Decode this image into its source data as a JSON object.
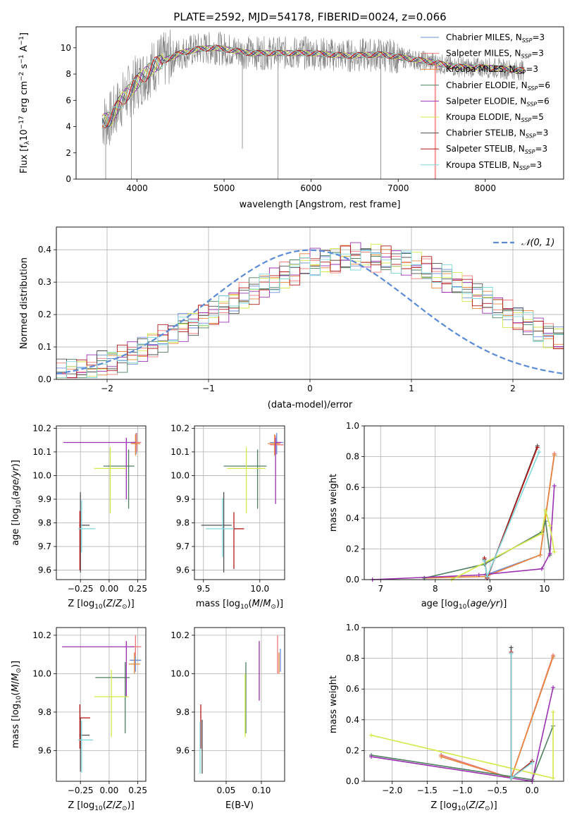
{
  "figure_title": "PLATE=2592, MJD=54178, FIBERID=0024, z=0.066",
  "colors": {
    "Chabrier MILES": "#6b8ed6",
    "Salpeter MILES": "#f07878",
    "Kroupa MILES": "#e8863a",
    "Chabrier ELODIE": "#4f7f5f",
    "Salpeter ELODIE": "#9b30b0",
    "Kroupa ELODIE": "#d4e84a",
    "Chabrier STELIB": "#505050",
    "Salpeter STELIB": "#b01818",
    "Kroupa STELIB": "#80d8dd",
    "data": "#808080",
    "normal": "#5b8bd6"
  },
  "chart_data": [
    {
      "type": "line",
      "id": "spectrum",
      "xlabel": "wavelength [Angstrom, rest frame]",
      "ylabel": "Flux [f_λ10^{-17} erg cm^{-2} s^{-1} A^{-1}]",
      "ylabel_parts": {
        "main": "Flux [f",
        "sub": "λ",
        "mid": "10",
        "sup1": "−17",
        "mid2": " erg cm",
        "sup2": "−2",
        "mid3": " s",
        "sup3": "−1",
        "end": " A",
        "sup4": "−1",
        "close": "]"
      },
      "xlim": [
        3300,
        8900
      ],
      "ylim": [
        0,
        11.6
      ],
      "xticks": [
        4000,
        5000,
        6000,
        7000,
        8000
      ],
      "yticks": [
        0,
        2,
        4,
        6,
        8,
        10
      ],
      "legend_location": "top-right",
      "series": [
        {
          "name": "Chabrier MILES",
          "nssp": "3"
        },
        {
          "name": "Salpeter MILES",
          "nssp": "3"
        },
        {
          "name": "Kroupa MILES",
          "nssp": "3"
        },
        {
          "name": "Chabrier ELODIE",
          "nssp": "6"
        },
        {
          "name": "Salpeter ELODIE",
          "nssp": "6"
        },
        {
          "name": "Kroupa ELODIE",
          "nssp": "5"
        },
        {
          "name": "Chabrier STELIB",
          "nssp": "3"
        },
        {
          "name": "Salpeter STELIB",
          "nssp": "3"
        },
        {
          "name": "Kroupa STELIB",
          "nssp": "3"
        }
      ],
      "continuum": {
        "x": [
          3600,
          3700,
          3800,
          3900,
          4000,
          4100,
          4200,
          4300,
          4400,
          4500,
          4700,
          4900,
          5100,
          5300,
          5600,
          6000,
          6400,
          6800,
          7000,
          7200,
          7400,
          7600,
          7800,
          8000,
          8200,
          8400,
          8800
        ],
        "y": [
          4.4,
          4.6,
          5.8,
          6.6,
          7.4,
          8.0,
          8.7,
          9.0,
          9.3,
          9.6,
          9.9,
          10.0,
          9.8,
          9.6,
          9.6,
          9.6,
          9.4,
          9.5,
          9.3,
          9.1,
          8.9,
          8.6,
          8.5,
          8.5,
          8.4,
          8.3,
          8.2
        ]
      }
    },
    {
      "type": "bar",
      "id": "residuals",
      "xlabel": "(data-model)/error",
      "ylabel": "Normed distribution",
      "xlim": [
        -2.5,
        2.5
      ],
      "ylim": [
        0,
        0.47
      ],
      "xticks": [
        -2,
        -1,
        0,
        1,
        2
      ],
      "yticks": [
        0.0,
        0.1,
        0.2,
        0.3,
        0.4
      ],
      "legend_location": "top-right",
      "normal_label": "𝒩(0, 1)",
      "bin_width": 0.1,
      "x_start": -2.5,
      "base": [
        0.02,
        0.025,
        0.03,
        0.035,
        0.045,
        0.055,
        0.065,
        0.08,
        0.09,
        0.11,
        0.125,
        0.14,
        0.16,
        0.175,
        0.19,
        0.205,
        0.22,
        0.24,
        0.255,
        0.275,
        0.29,
        0.305,
        0.32,
        0.335,
        0.35,
        0.36,
        0.365,
        0.37,
        0.375,
        0.38,
        0.375,
        0.375,
        0.37,
        0.365,
        0.36,
        0.35,
        0.34,
        0.325,
        0.31,
        0.295,
        0.28,
        0.26,
        0.24,
        0.225,
        0.205,
        0.19,
        0.17,
        0.155,
        0.14,
        0.125,
        0.11,
        0.1,
        0.09,
        0.08,
        0.07,
        0.06,
        0.05,
        0.045,
        0.04,
        0.035
      ]
    },
    {
      "type": "scatter",
      "id": "age-vs-Z",
      "xlabel": "Z [log10(Z/Z⊙)]",
      "ylabel": "age [log10(age/yr)]",
      "xlim": [
        -0.46,
        0.32
      ],
      "ylim": [
        9.56,
        10.21
      ],
      "xticks": [
        -0.25,
        0.0,
        0.25
      ],
      "xticklabels": [
        "−0.25",
        "0.00",
        "0.25"
      ],
      "yticks": [
        9.6,
        9.7,
        9.8,
        9.9,
        10.0,
        10.1,
        10.2
      ],
      "points": [
        {
          "series": "Chabrier MILES",
          "x": 0.235,
          "y": 10.14,
          "xerr": [
            0.05,
            0.03
          ],
          "yerr": [
            0.05,
            0.04
          ]
        },
        {
          "series": "Salpeter MILES",
          "x": 0.24,
          "y": 10.14,
          "xerr": [
            0.03,
            0.04
          ],
          "yerr": [
            0.04,
            0.04
          ]
        },
        {
          "series": "Kroupa MILES",
          "x": 0.23,
          "y": 10.135,
          "xerr": [
            0.04,
            0.04
          ],
          "yerr": [
            0.05,
            0.04
          ]
        },
        {
          "series": "Chabrier ELODIE",
          "x": 0.17,
          "y": 10.04,
          "xerr": [
            0.22,
            0.05
          ],
          "yerr": [
            0.18,
            0.07
          ]
        },
        {
          "series": "Salpeter ELODIE",
          "x": 0.15,
          "y": 10.14,
          "xerr": [
            0.55,
            0.08
          ],
          "yerr": [
            0.24,
            0.02
          ]
        },
        {
          "series": "Kroupa ELODIE",
          "x": 0.01,
          "y": 10.03,
          "xerr": [
            0.14,
            0.14
          ],
          "yerr": [
            0.19,
            0.09
          ]
        },
        {
          "series": "Chabrier STELIB",
          "x": -0.25,
          "y": 9.79,
          "xerr": [
            0.01,
            0.08
          ],
          "yerr": [
            0.2,
            0.14
          ]
        },
        {
          "series": "Salpeter STELIB",
          "x": -0.255,
          "y": 9.79,
          "xerr": [
            0.005,
            0.005
          ],
          "yerr": [
            0.19,
            0.06
          ]
        },
        {
          "series": "Kroupa STELIB",
          "x": -0.24,
          "y": 9.775,
          "xerr": [
            0.03,
            0.12
          ],
          "yerr": [
            0.1,
            0.12
          ]
        }
      ]
    },
    {
      "type": "scatter",
      "id": "age-vs-mass",
      "xlabel": "mass [log10(M/M⊙)]",
      "ylabel": "",
      "xlim": [
        9.42,
        10.22
      ],
      "ylim": [
        9.56,
        10.21
      ],
      "xticks": [
        9.5,
        10.0
      ],
      "xticklabels": [
        "9.5",
        "10.0"
      ],
      "yticks": [
        9.6,
        9.7,
        9.8,
        9.9,
        10.0,
        10.1,
        10.2
      ],
      "points": [
        {
          "series": "Chabrier MILES",
          "x": 10.15,
          "y": 10.14,
          "xerr": [
            0.06,
            0.06
          ],
          "yerr": [
            0.05,
            0.04
          ]
        },
        {
          "series": "Salpeter MILES",
          "x": 10.14,
          "y": 10.13,
          "xerr": [
            0.05,
            0.07
          ],
          "yerr": [
            0.04,
            0.04
          ]
        },
        {
          "series": "Kroupa MILES",
          "x": 10.13,
          "y": 10.135,
          "xerr": [
            0.06,
            0.05
          ],
          "yerr": [
            0.05,
            0.04
          ]
        },
        {
          "series": "Chabrier ELODIE",
          "x": 9.98,
          "y": 10.04,
          "xerr": [
            0.3,
            0.08
          ],
          "yerr": [
            0.18,
            0.07
          ]
        },
        {
          "series": "Salpeter ELODIE",
          "x": 10.14,
          "y": 10.14,
          "xerr": [
            0.0,
            0.05
          ],
          "yerr": [
            0.26,
            0.02
          ]
        },
        {
          "series": "Kroupa ELODIE",
          "x": 9.88,
          "y": 10.03,
          "xerr": [
            0.17,
            0.17
          ],
          "yerr": [
            0.19,
            0.09
          ]
        },
        {
          "series": "Chabrier STELIB",
          "x": 9.68,
          "y": 9.79,
          "xerr": [
            0.2,
            0.07
          ],
          "yerr": [
            0.2,
            0.14
          ]
        },
        {
          "series": "Salpeter STELIB",
          "x": 9.77,
          "y": 9.775,
          "xerr": [
            0.0,
            0.09
          ],
          "yerr": [
            0.17,
            0.07
          ]
        },
        {
          "series": "Kroupa STELIB",
          "x": 9.67,
          "y": 9.775,
          "xerr": [
            0.15,
            0.1
          ],
          "yerr": [
            0.12,
            0.13
          ]
        }
      ]
    },
    {
      "type": "line",
      "id": "massweight-vs-age",
      "xlabel": "age [log10(age/yr)]",
      "ylabel": "mass weight",
      "xlim": [
        6.7,
        10.35
      ],
      "ylim": [
        0,
        1.0
      ],
      "xticks": [
        7,
        8,
        9,
        10
      ],
      "yticks": [
        0.0,
        0.2,
        0.4,
        0.6,
        0.8,
        1.0
      ],
      "series": [
        {
          "name": "Chabrier MILES",
          "x": [
            8.92,
            9.92,
            10.18
          ],
          "y": [
            0.03,
            0.16,
            0.81
          ]
        },
        {
          "name": "Salpeter MILES",
          "x": [
            8.92,
            9.92,
            10.18
          ],
          "y": [
            0.02,
            0.16,
            0.82
          ]
        },
        {
          "name": "Kroupa MILES",
          "x": [
            7.8,
            8.92,
            9.92,
            10.18
          ],
          "y": [
            0.01,
            0.02,
            0.16,
            0.81
          ]
        },
        {
          "name": "Chabrier ELODIE",
          "x": [
            7.8,
            8.9,
            9.95,
            10.02,
            10.1
          ],
          "y": [
            0.01,
            0.1,
            0.31,
            0.38,
            0.16
          ]
        },
        {
          "name": "Salpeter ELODIE",
          "x": [
            6.85,
            8.8,
            9.95,
            10.1,
            10.18
          ],
          "y": [
            0.0,
            0.03,
            0.07,
            0.17,
            0.61
          ]
        },
        {
          "name": "Kroupa ELODIE",
          "x": [
            8.3,
            9.95,
            10.02,
            10.1,
            10.18
          ],
          "y": [
            0.0,
            0.3,
            0.45,
            0.35,
            0.18
          ]
        },
        {
          "name": "Chabrier STELIB",
          "x": [
            8.9,
            8.95,
            9.87
          ],
          "y": [
            0.13,
            0.01,
            0.87
          ]
        },
        {
          "name": "Salpeter STELIB",
          "x": [
            8.9,
            8.95,
            9.87
          ],
          "y": [
            0.14,
            0.01,
            0.86
          ]
        },
        {
          "name": "Kroupa STELIB",
          "x": [
            8.9,
            8.95,
            9.9
          ],
          "y": [
            0.12,
            0.02,
            0.83
          ]
        }
      ]
    },
    {
      "type": "scatter",
      "id": "mass-vs-Z",
      "xlabel": "Z [log10(Z/Z⊙)]",
      "ylabel": "mass [log10(M/M⊙)]",
      "xlim": [
        -0.46,
        0.32
      ],
      "ylim": [
        9.44,
        10.24
      ],
      "xticks": [
        -0.25,
        0.0,
        0.25
      ],
      "xticklabels": [
        "−0.25",
        "0.00",
        "0.25"
      ],
      "yticks": [
        9.6,
        9.8,
        10.0,
        10.2
      ],
      "points": [
        {
          "series": "Chabrier MILES",
          "x": 0.23,
          "y": 10.07,
          "xerr": [
            0.05,
            0.05
          ],
          "yerr": [
            0.06,
            0.06
          ]
        },
        {
          "series": "Salpeter MILES",
          "x": 0.23,
          "y": 10.14,
          "xerr": [
            0.04,
            0.05
          ],
          "yerr": [
            0.05,
            0.06
          ]
        },
        {
          "series": "Kroupa MILES",
          "x": 0.22,
          "y": 10.05,
          "xerr": [
            0.05,
            0.05
          ],
          "yerr": [
            0.05,
            0.06
          ]
        },
        {
          "series": "Chabrier ELODIE",
          "x": 0.14,
          "y": 9.98,
          "xerr": [
            0.26,
            0.04
          ],
          "yerr": [
            0.29,
            0.08
          ]
        },
        {
          "series": "Salpeter ELODIE",
          "x": 0.15,
          "y": 10.14,
          "xerr": [
            0.56,
            0.07
          ],
          "yerr": [
            0.26,
            0.03
          ]
        },
        {
          "series": "Kroupa ELODIE",
          "x": 0.02,
          "y": 9.88,
          "xerr": [
            0.15,
            0.15
          ],
          "yerr": [
            0.21,
            0.14
          ]
        },
        {
          "series": "Chabrier STELIB",
          "x": -0.25,
          "y": 9.68,
          "xerr": [
            0.01,
            0.08
          ],
          "yerr": [
            0.19,
            0.09
          ]
        },
        {
          "series": "Salpeter STELIB",
          "x": -0.255,
          "y": 9.77,
          "xerr": [
            0.005,
            0.09
          ],
          "yerr": [
            0.16,
            0.07
          ]
        },
        {
          "series": "Kroupa STELIB",
          "x": -0.24,
          "y": 9.655,
          "xerr": [
            0.03,
            0.1
          ],
          "yerr": [
            0.17,
            0.1
          ]
        }
      ]
    },
    {
      "type": "scatter",
      "id": "mass-vs-EBV",
      "xlabel": "E(B-V)",
      "ylabel": "",
      "xlim": [
        0.005,
        0.133
      ],
      "ylim": [
        9.44,
        10.24
      ],
      "xticks": [
        0.05,
        0.1
      ],
      "xticklabels": [
        "0.05",
        "0.10"
      ],
      "yticks": [
        9.6,
        9.8,
        10.0,
        10.2
      ],
      "points": [
        {
          "series": "Chabrier MILES",
          "x": 0.127,
          "y": 10.07,
          "yerr": [
            0.06,
            0.06
          ]
        },
        {
          "series": "Salpeter MILES",
          "x": 0.123,
          "y": 10.1,
          "yerr": [
            0.1,
            0.1
          ]
        },
        {
          "series": "Kroupa MILES",
          "x": 0.125,
          "y": 10.05,
          "yerr": [
            0.05,
            0.06
          ]
        },
        {
          "series": "Chabrier ELODIE",
          "x": 0.078,
          "y": 9.98,
          "yerr": [
            0.29,
            0.08
          ]
        },
        {
          "series": "Salpeter ELODIE",
          "x": 0.097,
          "y": 10.06,
          "yerr": [
            0.2,
            0.11
          ]
        },
        {
          "series": "Kroupa ELODIE",
          "x": 0.077,
          "y": 9.88,
          "yerr": [
            0.21,
            0.12
          ]
        },
        {
          "series": "Chabrier STELIB",
          "x": 0.016,
          "y": 9.62,
          "yerr": [
            0.14,
            0.14
          ]
        },
        {
          "series": "Salpeter STELIB",
          "x": 0.014,
          "y": 9.77,
          "yerr": [
            0.16,
            0.07
          ]
        },
        {
          "series": "Kroupa STELIB",
          "x": 0.013,
          "y": 9.63,
          "yerr": [
            0.15,
            0.12
          ]
        }
      ]
    },
    {
      "type": "line",
      "id": "massweight-vs-Z",
      "xlabel": "Z [log10(Z/Z⊙)]",
      "ylabel": "mass weight",
      "xlim": [
        -2.4,
        0.45
      ],
      "ylim": [
        0,
        1.0
      ],
      "xticks": [
        -2.0,
        -1.5,
        -1.0,
        -0.5,
        0.0
      ],
      "xticklabels": [
        "−2.0",
        "−1.5",
        "−1.0",
        "−0.5",
        "0.0"
      ],
      "yticks": [
        0.0,
        0.2,
        0.4,
        0.6,
        0.8,
        1.0
      ],
      "series": [
        {
          "name": "Chabrier MILES",
          "x": [
            -1.3,
            -0.3,
            0.3
          ],
          "y": [
            0.17,
            0.02,
            0.81
          ]
        },
        {
          "name": "Salpeter MILES",
          "x": [
            -1.3,
            -0.3,
            0.3
          ],
          "y": [
            0.17,
            0.02,
            0.82
          ]
        },
        {
          "name": "Kroupa MILES",
          "x": [
            -1.3,
            -0.3,
            0.3
          ],
          "y": [
            0.16,
            0.02,
            0.81
          ]
        },
        {
          "name": "Chabrier ELODIE",
          "x": [
            -2.3,
            0.0,
            0.3
          ],
          "y": [
            0.17,
            0.01,
            0.36
          ]
        },
        {
          "name": "Salpeter ELODIE",
          "x": [
            -2.3,
            0.0,
            0.3
          ],
          "y": [
            0.16,
            0.0,
            0.61
          ]
        },
        {
          "name": "Kroupa ELODIE",
          "x": [
            -2.3,
            0.3,
            0.3
          ],
          "y": [
            0.3,
            0.02,
            0.45
          ]
        },
        {
          "name": "Chabrier STELIB",
          "x": [
            -0.3,
            -0.3,
            0.0
          ],
          "y": [
            0.87,
            0.02,
            0.13
          ]
        },
        {
          "name": "Salpeter STELIB",
          "x": [
            -0.3,
            -0.3,
            0.0
          ],
          "y": [
            0.84,
            0.02,
            0.13
          ]
        },
        {
          "name": "Kroupa STELIB",
          "x": [
            -0.3,
            -0.3,
            0.0
          ],
          "y": [
            0.83,
            0.02,
            0.12
          ]
        }
      ]
    }
  ]
}
